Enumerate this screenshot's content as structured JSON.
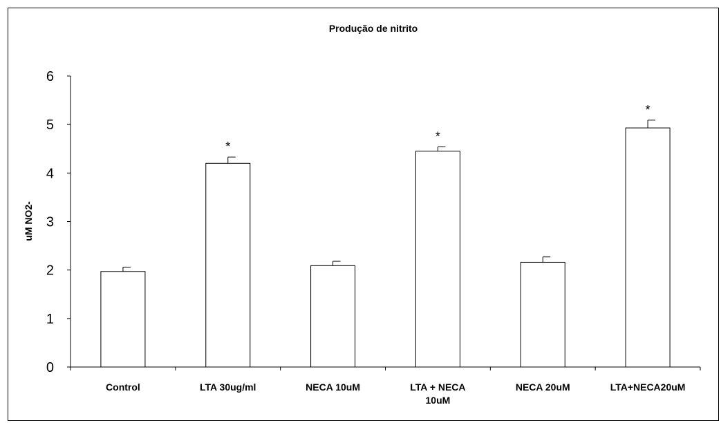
{
  "chart_data": {
    "type": "bar",
    "title": "Produção de nitrito",
    "xlabel": "",
    "ylabel": "uM NO2-",
    "ylim": [
      0,
      6
    ],
    "yticks": [
      "0",
      "1",
      "2",
      "3",
      "4",
      "5",
      "6"
    ],
    "grid": false,
    "legend": "none",
    "categories": [
      [
        "Control"
      ],
      [
        "LTA 30ug/ml"
      ],
      [
        "NECA 10uM"
      ],
      [
        "LTA + NECA",
        "10uM"
      ],
      [
        "NECA 20uM"
      ],
      [
        "LTA+NECA20uM"
      ]
    ],
    "values": [
      1.97,
      4.2,
      2.09,
      4.45,
      2.16,
      4.93
    ],
    "errors": [
      0.09,
      0.13,
      0.09,
      0.09,
      0.11,
      0.16
    ],
    "annotations": [
      "",
      "*",
      "",
      "*",
      "",
      "*"
    ],
    "bar_fill": "#ffffff",
    "bar_stroke": "#000000"
  }
}
